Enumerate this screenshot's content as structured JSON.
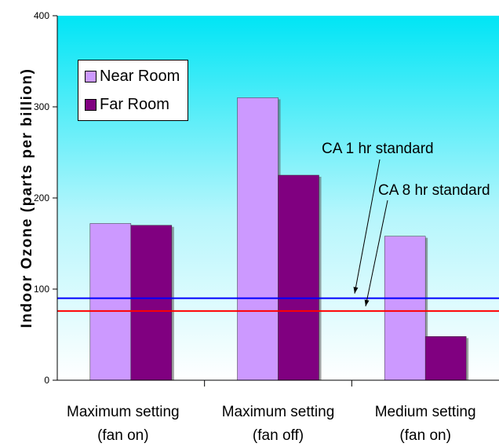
{
  "chart_data": {
    "type": "bar",
    "ylabel": "Indoor Ozone (parts per billion)",
    "ylim": [
      0,
      400
    ],
    "yticks": [
      0,
      100,
      200,
      300,
      400
    ],
    "categories": [
      [
        "Maximum setting",
        "(fan on)"
      ],
      [
        "Maximum setting",
        "(fan off)"
      ],
      [
        "Medium setting",
        "(fan on)"
      ]
    ],
    "series": [
      {
        "name": "Near Room",
        "values": [
          172,
          310,
          158
        ],
        "color": "#cc99ff"
      },
      {
        "name": "Far Room",
        "values": [
          170,
          225,
          48
        ],
        "color": "#800080"
      }
    ],
    "reference_lines": [
      {
        "label": "CA 1 hr standard",
        "value": 90,
        "color": "#0000ff"
      },
      {
        "label": "CA 8 hr standard",
        "value": 76,
        "color": "#ff0000"
      }
    ],
    "legend_position": "top-left",
    "grid": false,
    "background": "gradient cyan to white"
  }
}
